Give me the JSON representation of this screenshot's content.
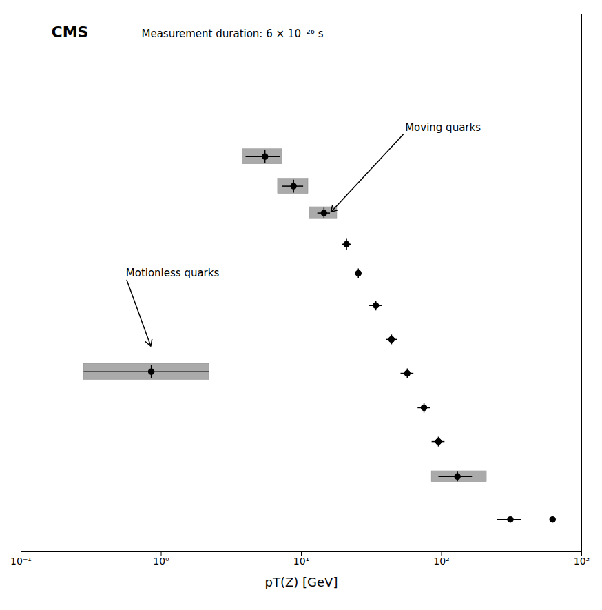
{
  "chart_data": {
    "type": "scatter",
    "title": "CMS",
    "subtitle": "Measurement duration: 6 × 10⁻²⁶ s",
    "xlabel": "pT(Z) [GeV]",
    "log": "x",
    "xlim": [
      0.1,
      1000
    ],
    "xticks": [
      {
        "value": 0.1,
        "label": "10⁻¹"
      },
      {
        "value": 1,
        "label": "10⁰"
      },
      {
        "value": 10,
        "label": "10¹"
      },
      {
        "value": 100,
        "label": "10²"
      },
      {
        "value": 1000,
        "label": "10³"
      }
    ],
    "ylim": [
      0.0,
      1.0
    ],
    "tick_labels": "x",
    "grid": false,
    "color": "#000000",
    "marker": "o",
    "x": [
      0.85,
      5.5,
      8.8,
      14.5,
      21.0,
      25.5,
      34.0,
      44.0,
      57.0,
      75.0,
      95.0,
      130.0,
      310.0,
      620.0
    ],
    "values": [
      0.335,
      0.735,
      0.68,
      0.63,
      0.572,
      0.518,
      0.458,
      0.395,
      0.332,
      0.268,
      0.205,
      0.14,
      0.06,
      0.06
    ],
    "xerr_lo": [
      0.57,
      1.5,
      1.5,
      1.5,
      1.5,
      0.8,
      3.5,
      4.0,
      6.0,
      7.5,
      10.0,
      35.0,
      60.0,
      10.0
    ],
    "xerr_hi": [
      1.35,
      1.5,
      1.5,
      1.5,
      1.5,
      0.8,
      3.5,
      4.0,
      6.0,
      7.5,
      10.0,
      35.0,
      60.0,
      10.0
    ],
    "yerr": [
      0.012,
      0.012,
      0.012,
      0.01,
      0.01,
      0.009,
      0.009,
      0.009,
      0.009,
      0.009,
      0.009,
      0.009,
      0.004,
      0.004
    ],
    "boxes": [
      [
        0.28,
        2.2,
        0.03
      ],
      [
        3.8,
        7.3,
        0.028
      ],
      [
        6.8,
        11.2,
        0.028
      ],
      [
        11.5,
        18.0,
        0.022
      ],
      null,
      null,
      null,
      null,
      null,
      null,
      null,
      [
        85.0,
        210.0,
        0.02
      ],
      null,
      null
    ],
    "annotations": [
      {
        "text": "Moving quarks",
        "x": 16.0,
        "y": 0.63,
        "text_x": 55.0,
        "text_y": 0.78
      },
      {
        "text": "Motionless quarks",
        "x": 0.85,
        "y": 0.38,
        "text_x": 0.56,
        "text_y": 0.51
      }
    ]
  }
}
